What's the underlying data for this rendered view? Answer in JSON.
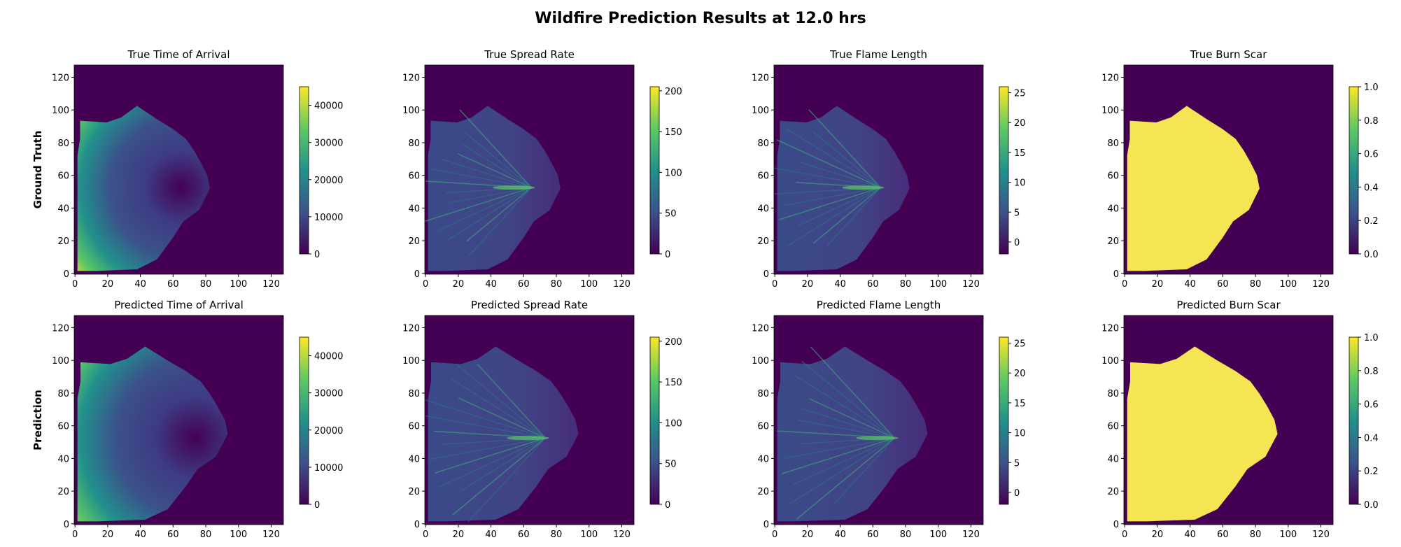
{
  "chart_data": {
    "type": "heatmap",
    "title": "Wildfire Prediction Results at 12.0 hrs",
    "row_labels": [
      "Ground Truth",
      "Prediction"
    ],
    "colormap": "viridis",
    "colormap_colors": [
      "#440154",
      "#3b528b",
      "#21918c",
      "#5ec962",
      "#fde725"
    ],
    "x_ticks": [
      "0",
      "20",
      "40",
      "60",
      "80",
      "100",
      "120"
    ],
    "y_ticks": [
      "0",
      "20",
      "40",
      "60",
      "80",
      "100",
      "120"
    ],
    "xlim": [
      0,
      127
    ],
    "ylim": [
      0,
      127
    ],
    "grid": false,
    "panels": [
      {
        "title": "True Time of Arrival",
        "row": 0,
        "variable": "toa",
        "cbar_range": [
          0,
          45000
        ],
        "cbar_ticks": [
          "0",
          "10000",
          "20000",
          "30000",
          "40000"
        ],
        "burn_extent_x": [
          2,
          83
        ],
        "burn_extent_y": [
          2,
          103
        ]
      },
      {
        "title": "True Spread Rate",
        "row": 0,
        "variable": "spread",
        "cbar_range": [
          0,
          205
        ],
        "cbar_ticks": [
          "0",
          "50",
          "100",
          "150",
          "200"
        ],
        "burn_extent_x": [
          2,
          83
        ],
        "burn_extent_y": [
          2,
          103
        ]
      },
      {
        "title": "True Flame Length",
        "row": 0,
        "variable": "flame",
        "cbar_range": [
          -2,
          26
        ],
        "cbar_ticks": [
          "0",
          "5",
          "10",
          "15",
          "20",
          "25"
        ],
        "burn_extent_x": [
          2,
          83
        ],
        "burn_extent_y": [
          2,
          103
        ]
      },
      {
        "title": "True Burn Scar",
        "row": 0,
        "variable": "scar",
        "cbar_range": [
          0,
          1
        ],
        "cbar_ticks": [
          "0.0",
          "0.2",
          "0.4",
          "0.6",
          "0.8",
          "1.0"
        ],
        "burn_extent_x": [
          2,
          83
        ],
        "burn_extent_y": [
          2,
          103
        ]
      },
      {
        "title": "Predicted Time of Arrival",
        "row": 1,
        "variable": "toa",
        "cbar_range": [
          0,
          45000
        ],
        "cbar_ticks": [
          "0",
          "10000",
          "20000",
          "30000",
          "40000"
        ],
        "burn_extent_x": [
          2,
          94
        ],
        "burn_extent_y": [
          2,
          109
        ]
      },
      {
        "title": "Predicted Spread Rate",
        "row": 1,
        "variable": "spread",
        "cbar_range": [
          0,
          205
        ],
        "cbar_ticks": [
          "0",
          "50",
          "100",
          "150",
          "200"
        ],
        "burn_extent_x": [
          2,
          94
        ],
        "burn_extent_y": [
          2,
          109
        ]
      },
      {
        "title": "Predicted Flame Length",
        "row": 1,
        "variable": "flame",
        "cbar_range": [
          -2,
          26
        ],
        "cbar_ticks": [
          "0",
          "5",
          "10",
          "15",
          "20",
          "25"
        ],
        "burn_extent_x": [
          2,
          94
        ],
        "burn_extent_y": [
          2,
          109
        ]
      },
      {
        "title": "Predicted Burn Scar",
        "row": 1,
        "variable": "scar",
        "cbar_range": [
          0,
          1
        ],
        "cbar_ticks": [
          "0.0",
          "0.2",
          "0.4",
          "0.6",
          "0.8",
          "1.0"
        ],
        "burn_extent_x": [
          2,
          94
        ],
        "burn_extent_y": [
          2,
          109
        ]
      }
    ]
  }
}
